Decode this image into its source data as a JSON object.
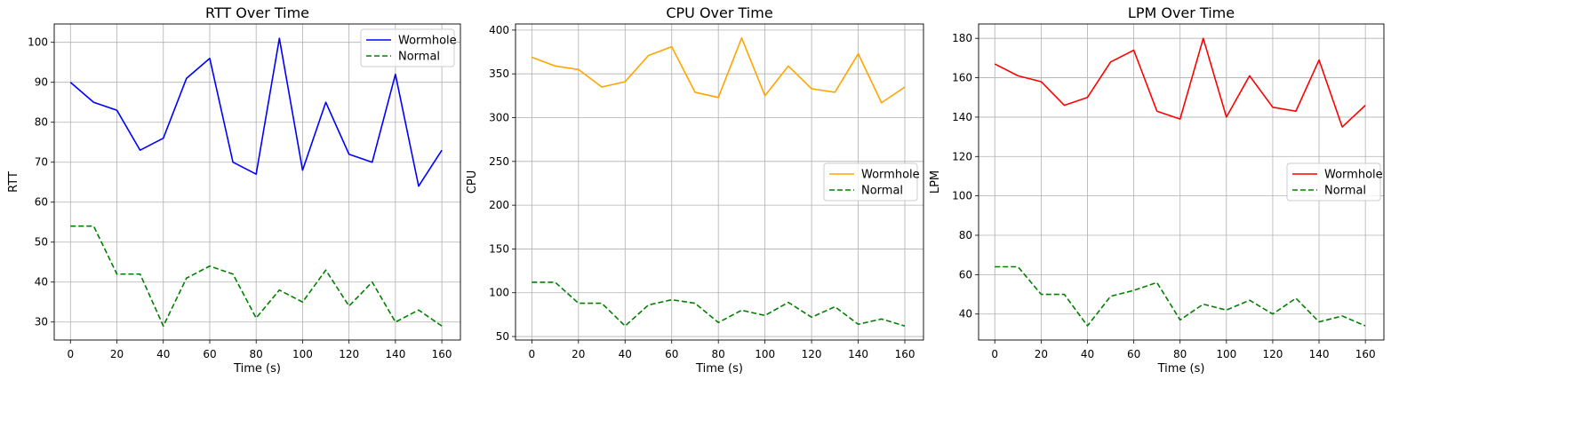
{
  "chart_data": [
    {
      "type": "line",
      "title": "RTT Over Time",
      "xlabel": "Time (s)",
      "ylabel": "RTT",
      "xlim": [
        -7,
        168
      ],
      "ylim": [
        25.5,
        104.6
      ],
      "xticks": [
        0,
        20,
        40,
        60,
        80,
        100,
        120,
        140,
        160
      ],
      "yticks": [
        30,
        40,
        50,
        60,
        70,
        80,
        90,
        100
      ],
      "grid": true,
      "legend_placement": "top-right",
      "x": [
        0,
        10,
        20,
        30,
        40,
        50,
        60,
        70,
        80,
        90,
        100,
        110,
        120,
        130,
        140,
        150,
        160
      ],
      "series": [
        {
          "name": "Wormhole",
          "color": "#0000ff",
          "style": "solid",
          "values": [
            90,
            85,
            83,
            73,
            76,
            91,
            96,
            70,
            67,
            101,
            68,
            85,
            72,
            70,
            92,
            64,
            73
          ]
        },
        {
          "name": "Normal",
          "color": "#008000",
          "style": "dashed",
          "values": [
            54,
            54,
            42,
            42,
            29,
            41,
            44,
            42,
            31,
            38,
            35,
            43,
            34,
            40,
            30,
            33,
            29
          ]
        }
      ]
    },
    {
      "type": "line",
      "title": "CPU Over Time",
      "xlabel": "Time (s)",
      "ylabel": "CPU",
      "xlim": [
        -7,
        168
      ],
      "ylim": [
        46,
        407
      ],
      "xticks": [
        0,
        20,
        40,
        60,
        80,
        100,
        120,
        140,
        160
      ],
      "yticks": [
        50,
        100,
        150,
        200,
        250,
        300,
        350,
        400
      ],
      "grid": true,
      "legend_placement": "center-right",
      "x": [
        0,
        10,
        20,
        30,
        40,
        50,
        60,
        70,
        80,
        90,
        100,
        110,
        120,
        130,
        140,
        150,
        160
      ],
      "series": [
        {
          "name": "Wormhole",
          "color": "#ffa500",
          "style": "solid",
          "values": [
            369,
            359,
            355,
            335,
            341,
            371,
            381,
            329,
            323,
            391,
            325,
            359,
            333,
            329,
            373,
            317,
            335
          ]
        },
        {
          "name": "Normal",
          "color": "#008000",
          "style": "dashed",
          "values": [
            112,
            112,
            88,
            88,
            62,
            86,
            92,
            88,
            66,
            80,
            74,
            89,
            72,
            84,
            64,
            70,
            62
          ]
        }
      ]
    },
    {
      "type": "line",
      "title": "LPM Over Time",
      "xlabel": "Time (s)",
      "ylabel": "LPM",
      "xlim": [
        -7,
        168
      ],
      "ylim": [
        26.8,
        187.3
      ],
      "xticks": [
        0,
        20,
        40,
        60,
        80,
        100,
        120,
        140,
        160
      ],
      "yticks": [
        40,
        60,
        80,
        100,
        120,
        140,
        160,
        180
      ],
      "grid": true,
      "legend_placement": "center-right",
      "x": [
        0,
        10,
        20,
        30,
        40,
        50,
        60,
        70,
        80,
        90,
        100,
        110,
        120,
        130,
        140,
        150,
        160
      ],
      "series": [
        {
          "name": "Wormhole",
          "color": "#ff0000",
          "style": "solid",
          "values": [
            167,
            161,
            158,
            146,
            150,
            168,
            174,
            143,
            139,
            180,
            140,
            161,
            145,
            143,
            169,
            135,
            146
          ]
        },
        {
          "name": "Normal",
          "color": "#008000",
          "style": "dashed",
          "values": [
            64,
            64,
            50,
            50,
            34,
            49,
            52,
            56,
            37,
            45,
            42,
            47,
            40,
            48,
            36,
            39,
            34
          ]
        }
      ]
    }
  ]
}
